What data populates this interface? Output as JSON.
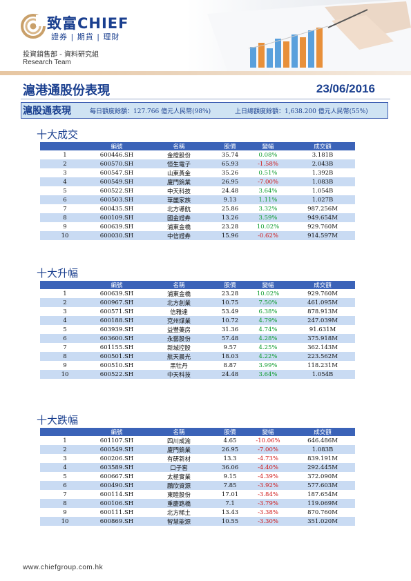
{
  "header": {
    "brand_zh": "致富",
    "brand_en": "CHIEF",
    "brand_sub": "證券 | 期貨 | 理財",
    "dept": "投資銷售部 - 資料研究組",
    "team": "Research Team"
  },
  "title": {
    "text": "滬港通股份表現",
    "date": "23/06/2016"
  },
  "summary": {
    "label": "滬股通表現",
    "daily_quota": "每日額度餘額：127.766 億元人民幣(98%)",
    "prev_quota": "上日總額度餘額：1,638.200 億元人民幣(55%)"
  },
  "columns": [
    "",
    "編號",
    "名稱",
    "股價",
    "變幅",
    "成交額"
  ],
  "sections": [
    {
      "title": "十大成交",
      "rows": [
        {
          "rank": "1",
          "code": "600446.SH",
          "name": "金證股份",
          "price": "35.74",
          "change": "0.08%",
          "turnover": "3.181B"
        },
        {
          "rank": "2",
          "code": "600570.SH",
          "name": "恒生電子",
          "price": "65.93",
          "change": "-1.58%",
          "turnover": "2.043B"
        },
        {
          "rank": "3",
          "code": "600547.SH",
          "name": "山東黃金",
          "price": "35.26",
          "change": "0.51%",
          "turnover": "1.392B"
        },
        {
          "rank": "4",
          "code": "600549.SH",
          "name": "廈門鎢業",
          "price": "26.95",
          "change": "-7.00%",
          "turnover": "1.083B"
        },
        {
          "rank": "5",
          "code": "600522.SH",
          "name": "中天科技",
          "price": "24.48",
          "change": "3.64%",
          "turnover": "1.054B"
        },
        {
          "rank": "6",
          "code": "600503.SH",
          "name": "華麗家族",
          "price": "9.13",
          "change": "1.11%",
          "turnover": "1.027B"
        },
        {
          "rank": "7",
          "code": "600435.SH",
          "name": "北方導航",
          "price": "25.86",
          "change": "3.32%",
          "turnover": "987.256M"
        },
        {
          "rank": "8",
          "code": "600109.SH",
          "name": "國金證券",
          "price": "13.26",
          "change": "3.59%",
          "turnover": "949.654M"
        },
        {
          "rank": "9",
          "code": "600639.SH",
          "name": "浦東金橋",
          "price": "23.28",
          "change": "10.02%",
          "turnover": "929.760M"
        },
        {
          "rank": "10",
          "code": "600030.SH",
          "name": "中信證券",
          "price": "15.96",
          "change": "-0.62%",
          "turnover": "914.597M"
        }
      ]
    },
    {
      "title": "十大升幅",
      "rows": [
        {
          "rank": "1",
          "code": "600639.SH",
          "name": "浦東金橋",
          "price": "23.28",
          "change": "10.02%",
          "turnover": "929.760M"
        },
        {
          "rank": "2",
          "code": "600967.SH",
          "name": "北方創業",
          "price": "10.75",
          "change": "7.50%",
          "turnover": "461.095M"
        },
        {
          "rank": "3",
          "code": "600571.SH",
          "name": "信雅達",
          "price": "53.49",
          "change": "6.38%",
          "turnover": "878.913M"
        },
        {
          "rank": "4",
          "code": "600188.SH",
          "name": "兗州煤業",
          "price": "10.72",
          "change": "4.79%",
          "turnover": "247.039M"
        },
        {
          "rank": "5",
          "code": "603939.SH",
          "name": "益豐藥房",
          "price": "31.36",
          "change": "4.74%",
          "turnover": "91.631M"
        },
        {
          "rank": "6",
          "code": "603600.SH",
          "name": "永藝股份",
          "price": "57.48",
          "change": "4.28%",
          "turnover": "375.918M"
        },
        {
          "rank": "7",
          "code": "601155.SH",
          "name": "新城控股",
          "price": "9.57",
          "change": "4.25%",
          "turnover": "362.143M"
        },
        {
          "rank": "8",
          "code": "600501.SH",
          "name": "航天晨光",
          "price": "18.03",
          "change": "4.22%",
          "turnover": "223.562M"
        },
        {
          "rank": "9",
          "code": "600510.SH",
          "name": "黑牡丹",
          "price": "8.87",
          "change": "3.99%",
          "turnover": "118.231M"
        },
        {
          "rank": "10",
          "code": "600522.SH",
          "name": "中天科技",
          "price": "24.48",
          "change": "3.64%",
          "turnover": "1.054B"
        }
      ]
    },
    {
      "title": "十大跌幅",
      "rows": [
        {
          "rank": "1",
          "code": "601107.SH",
          "name": "四川成渝",
          "price": "4.65",
          "change": "-10.06%",
          "turnover": "646.486M"
        },
        {
          "rank": "2",
          "code": "600549.SH",
          "name": "廈門鎢業",
          "price": "26.95",
          "change": "-7.00%",
          "turnover": "1.083B"
        },
        {
          "rank": "3",
          "code": "600206.SH",
          "name": "有研新材",
          "price": "13.3",
          "change": "-4.73%",
          "turnover": "839.191M"
        },
        {
          "rank": "4",
          "code": "603589.SH",
          "name": "口子窖",
          "price": "36.06",
          "change": "-4.40%",
          "turnover": "292.445M"
        },
        {
          "rank": "5",
          "code": "600667.SH",
          "name": "太極實業",
          "price": "9.15",
          "change": "-4.39%",
          "turnover": "372.090M"
        },
        {
          "rank": "6",
          "code": "600490.SH",
          "name": "鵬欣資源",
          "price": "7.85",
          "change": "-3.92%",
          "turnover": "577.603M"
        },
        {
          "rank": "7",
          "code": "600114.SH",
          "name": "東睦股份",
          "price": "17.01",
          "change": "-3.84%",
          "turnover": "187.654M"
        },
        {
          "rank": "8",
          "code": "600106.SH",
          "name": "重慶路橋",
          "price": "7.1",
          "change": "-3.79%",
          "turnover": "119.069M"
        },
        {
          "rank": "9",
          "code": "600111.SH",
          "name": "北方稀土",
          "price": "13.43",
          "change": "-3.38%",
          "turnover": "870.760M"
        },
        {
          "rank": "10",
          "code": "600869.SH",
          "name": "智慧能源",
          "price": "10.55",
          "change": "-3.30%",
          "turnover": "351.020M"
        }
      ]
    }
  ],
  "footer": {
    "url": "www.chiefgroup.com.hk"
  },
  "colors": {
    "brand_blue": "#1a3f8f",
    "header_blue": "#3b63b8",
    "up_green": "#0a9a2a",
    "down_red": "#d01818"
  }
}
